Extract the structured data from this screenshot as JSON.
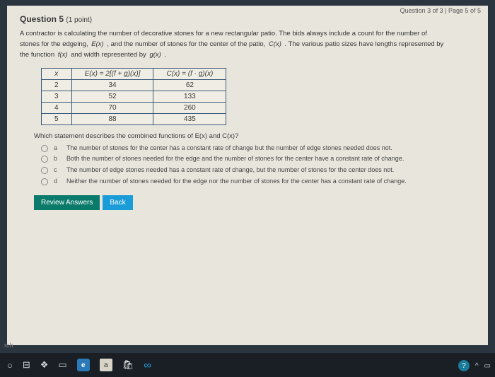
{
  "page_corner": "Question 3 of 3 | Page 5 of 5",
  "title": "Question 5",
  "points": "(1 point)",
  "prompt_line1": "A contractor is calculating the number of decorative stones for a new rectangular patio. The bids always include a count for the number of",
  "prompt_line2a": "stones for the edgeing,",
  "fn_E": "E(x)",
  "prompt_line2b": ", and the number of stones for the center of the patio,",
  "fn_C": "C(x)",
  "prompt_line2c": ". The various patio sizes have lengths represented by",
  "prompt_line3a": "the function",
  "fn_f": "f(x)",
  "prompt_line3b": "and width represented by",
  "fn_g": "g(x)",
  "prompt_line3c": ".",
  "table": {
    "headers": [
      "x",
      "E(x) = 2[(f + g)(x)]",
      "C(x) = (f · g)(x)"
    ],
    "rows": [
      [
        "2",
        "34",
        "62"
      ],
      [
        "3",
        "52",
        "133"
      ],
      [
        "4",
        "70",
        "260"
      ],
      [
        "5",
        "88",
        "435"
      ]
    ]
  },
  "which_a": "Which statement describes the combined functions of",
  "which_b": "and",
  "which_c": "?",
  "options": [
    {
      "k": "a",
      "t": "The number of stones for the center has a constant rate of change but the number of edge stones needed does not."
    },
    {
      "k": "b",
      "t": "Both the number of stones needed for the edge and the number of stones for the center have a constant rate of change."
    },
    {
      "k": "c",
      "t": "The number of edge stones needed has a constant rate of change, but the number of stones for the center does not."
    },
    {
      "k": "d",
      "t": "Neither the number of stones needed for the edge nor the number of stones for the center has a constant rate of change."
    }
  ],
  "btn_review": "Review Answers",
  "btn_back": "Back",
  "tb_left": "rch"
}
